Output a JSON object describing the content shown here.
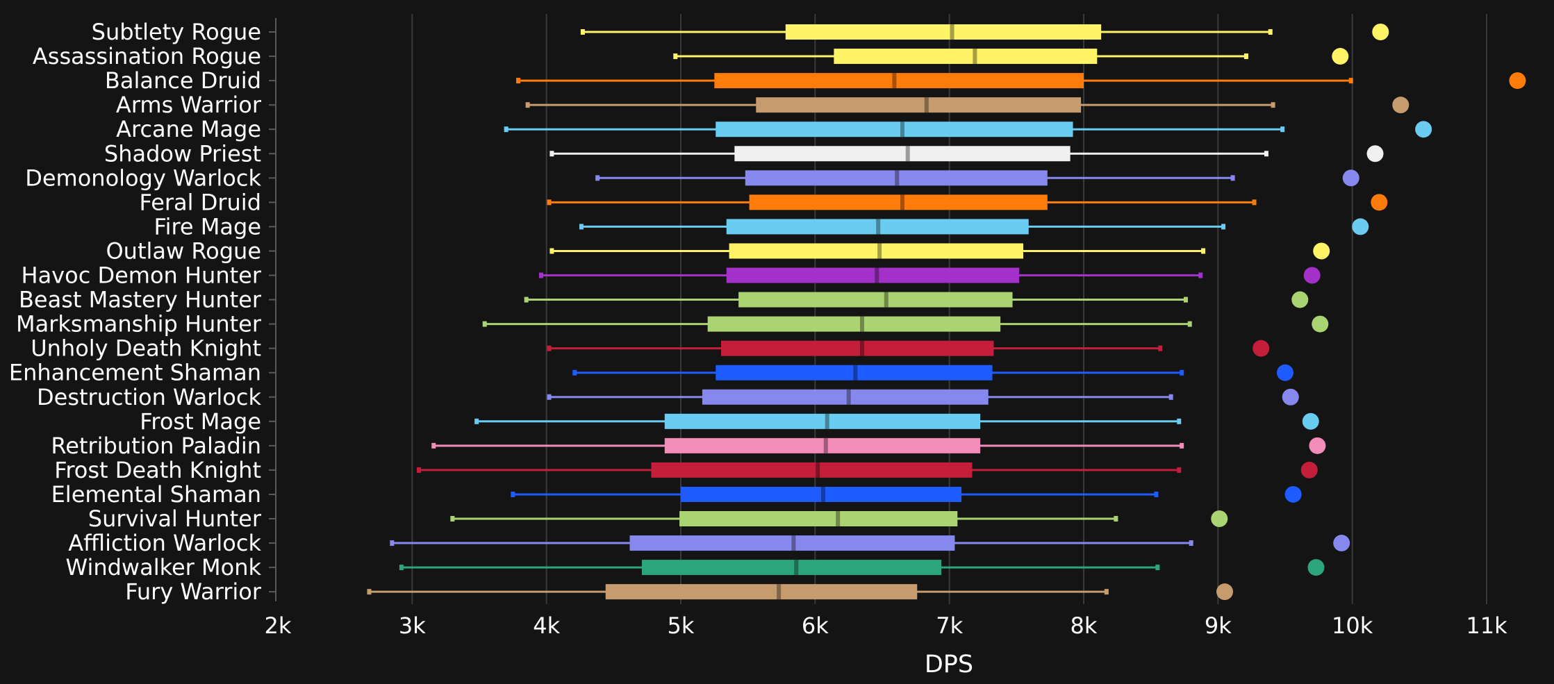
{
  "chart_data": {
    "type": "box",
    "xlabel": "DPS",
    "xlim": [
      2000,
      11000
    ],
    "x_tick_labels": [
      "2k",
      "3k",
      "4k",
      "5k",
      "6k",
      "7k",
      "8k",
      "9k",
      "10k",
      "11k"
    ],
    "x_tick_values": [
      2000,
      3000,
      4000,
      5000,
      6000,
      7000,
      8000,
      9000,
      10000,
      11000
    ],
    "grid": true,
    "series": [
      {
        "name": "Subtlety Rogue",
        "color": "#fff468",
        "min": 4270,
        "q1": 5780,
        "median": 7020,
        "q3": 8130,
        "max": 9390,
        "outlier": 10210
      },
      {
        "name": "Assassination Rogue",
        "color": "#fff468",
        "min": 4960,
        "q1": 6140,
        "median": 7190,
        "q3": 8100,
        "max": 9210,
        "outlier": 9910
      },
      {
        "name": "Balance Druid",
        "color": "#ff7c0a",
        "min": 3790,
        "q1": 5250,
        "median": 6590,
        "q3": 8000,
        "max": 9990,
        "outlier": 11230
      },
      {
        "name": "Arms Warrior",
        "color": "#c69b6d",
        "min": 3860,
        "q1": 5560,
        "median": 6830,
        "q3": 7980,
        "max": 9410,
        "outlier": 10360
      },
      {
        "name": "Arcane Mage",
        "color": "#69ccf0",
        "min": 3700,
        "q1": 5260,
        "median": 6650,
        "q3": 7920,
        "max": 9480,
        "outlier": 10530
      },
      {
        "name": "Shadow Priest",
        "color": "#f0f0f0",
        "min": 4040,
        "q1": 5400,
        "median": 6690,
        "q3": 7900,
        "max": 9360,
        "outlier": 10170
      },
      {
        "name": "Demonology Warlock",
        "color": "#8788ee",
        "min": 4380,
        "q1": 5480,
        "median": 6610,
        "q3": 7730,
        "max": 9110,
        "outlier": 9990
      },
      {
        "name": "Feral Druid",
        "color": "#ff7c0a",
        "min": 4020,
        "q1": 5510,
        "median": 6650,
        "q3": 7730,
        "max": 9270,
        "outlier": 10200
      },
      {
        "name": "Fire Mage",
        "color": "#69ccf0",
        "min": 4260,
        "q1": 5340,
        "median": 6470,
        "q3": 7590,
        "max": 9040,
        "outlier": 10060
      },
      {
        "name": "Outlaw Rogue",
        "color": "#fff468",
        "min": 4040,
        "q1": 5360,
        "median": 6480,
        "q3": 7550,
        "max": 8890,
        "outlier": 9770
      },
      {
        "name": "Havoc Demon Hunter",
        "color": "#a330c9",
        "min": 3960,
        "q1": 5340,
        "median": 6460,
        "q3": 7520,
        "max": 8870,
        "outlier": 9700
      },
      {
        "name": "Beast Mastery Hunter",
        "color": "#aad372",
        "min": 3850,
        "q1": 5430,
        "median": 6530,
        "q3": 7470,
        "max": 8760,
        "outlier": 9610
      },
      {
        "name": "Marksmanship Hunter",
        "color": "#aad372",
        "min": 3540,
        "q1": 5200,
        "median": 6350,
        "q3": 7380,
        "max": 8790,
        "outlier": 9760
      },
      {
        "name": "Unholy Death Knight",
        "color": "#c41e3a",
        "min": 4020,
        "q1": 5300,
        "median": 6350,
        "q3": 7330,
        "max": 8570,
        "outlier": 9320
      },
      {
        "name": "Enhancement Shaman",
        "color": "#1e5cff",
        "min": 4210,
        "q1": 5260,
        "median": 6300,
        "q3": 7320,
        "max": 8730,
        "outlier": 9500
      },
      {
        "name": "Destruction Warlock",
        "color": "#8788ee",
        "min": 4020,
        "q1": 5160,
        "median": 6250,
        "q3": 7290,
        "max": 8650,
        "outlier": 9540
      },
      {
        "name": "Frost Mage",
        "color": "#69ccf0",
        "min": 3480,
        "q1": 4880,
        "median": 6090,
        "q3": 7230,
        "max": 8710,
        "outlier": 9690
      },
      {
        "name": "Retribution Paladin",
        "color": "#f48cba",
        "min": 3160,
        "q1": 4880,
        "median": 6080,
        "q3": 7230,
        "max": 8730,
        "outlier": 9740
      },
      {
        "name": "Frost Death Knight",
        "color": "#c41e3a",
        "min": 3050,
        "q1": 4780,
        "median": 6020,
        "q3": 7170,
        "max": 8710,
        "outlier": 9680
      },
      {
        "name": "Elemental Shaman",
        "color": "#1e5cff",
        "min": 3750,
        "q1": 5000,
        "median": 6060,
        "q3": 7090,
        "max": 8540,
        "outlier": 9560
      },
      {
        "name": "Survival Hunter",
        "color": "#aad372",
        "min": 3300,
        "q1": 4990,
        "median": 6170,
        "q3": 7060,
        "max": 8240,
        "outlier": 9010
      },
      {
        "name": "Affliction Warlock",
        "color": "#8788ee",
        "min": 2850,
        "q1": 4620,
        "median": 5840,
        "q3": 7040,
        "max": 8800,
        "outlier": 9920
      },
      {
        "name": "Windwalker Monk",
        "color": "#2da57c",
        "min": 2920,
        "q1": 4710,
        "median": 5860,
        "q3": 6940,
        "max": 8550,
        "outlier": 9730
      },
      {
        "name": "Fury Warrior",
        "color": "#c69b6d",
        "min": 2680,
        "q1": 4440,
        "median": 5730,
        "q3": 6760,
        "max": 8170,
        "outlier": 9050
      }
    ]
  }
}
